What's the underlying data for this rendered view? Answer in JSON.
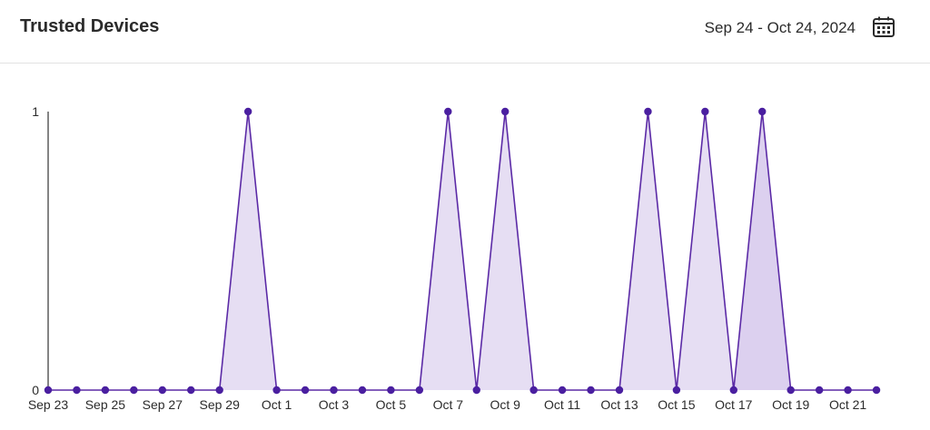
{
  "header": {
    "title": "Trusted Devices",
    "date_range": "Sep 24 - Oct 24, 2024",
    "calendar_icon": "calendar-icon"
  },
  "colors": {
    "line": "#5b2aa6",
    "point": "#4a1fa0",
    "fill": "#e6def3",
    "fill_last": "#dcd0ef",
    "axis": "#333333"
  },
  "chart_data": {
    "type": "area",
    "title": "",
    "xlabel": "",
    "ylabel": "",
    "ylim": [
      0,
      1
    ],
    "y_ticks": [
      "0",
      "1"
    ],
    "x": [
      "Sep 23",
      "Sep 24",
      "Sep 25",
      "Sep 26",
      "Sep 27",
      "Sep 28",
      "Sep 29",
      "Sep 30",
      "Oct 1",
      "Oct 2",
      "Oct 3",
      "Oct 4",
      "Oct 5",
      "Oct 6",
      "Oct 7",
      "Oct 8",
      "Oct 9",
      "Oct 10",
      "Oct 11",
      "Oct 12",
      "Oct 13",
      "Oct 14",
      "Oct 15",
      "Oct 16",
      "Oct 17",
      "Oct 18",
      "Oct 19",
      "Oct 20",
      "Oct 21",
      "Oct 22"
    ],
    "x_tick_labels": [
      "Sep 23",
      "Sep 25",
      "Sep 27",
      "Sep 29",
      "Oct 1",
      "Oct 3",
      "Oct 5",
      "Oct 7",
      "Oct 9",
      "Oct 11",
      "Oct 13",
      "Oct 15",
      "Oct 17",
      "Oct 19",
      "Oct 21"
    ],
    "series": [
      {
        "values": [
          0,
          0,
          0,
          0,
          0,
          0,
          0,
          1,
          0,
          0,
          0,
          0,
          0,
          0,
          1,
          0,
          1,
          0,
          0,
          0,
          0,
          1,
          0,
          1,
          0,
          1,
          0,
          0,
          0,
          0
        ]
      }
    ]
  }
}
